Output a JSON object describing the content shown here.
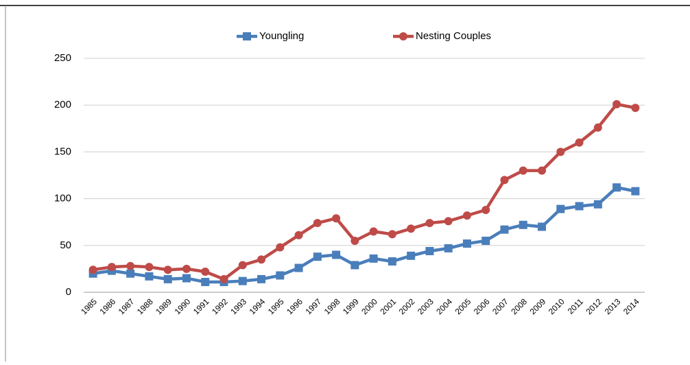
{
  "chart_data": {
    "type": "line",
    "categories": [
      "1985",
      "1986",
      "1987",
      "1988",
      "1989",
      "1990",
      "1991",
      "1992",
      "1993",
      "1994",
      "1995",
      "1996",
      "1997",
      "1998",
      "1999",
      "2000",
      "2001",
      "2002",
      "2003",
      "2004",
      "2005",
      "2006",
      "2007",
      "2008",
      "2009",
      "2010",
      "2011",
      "2012",
      "2013",
      "2014"
    ],
    "series": [
      {
        "name": "Youngling",
        "color": "#4a7ebb",
        "marker": "square",
        "values": [
          20,
          23,
          20,
          17,
          14,
          15,
          11,
          11,
          12,
          14,
          18,
          26,
          38,
          40,
          29,
          36,
          33,
          39,
          44,
          47,
          52,
          55,
          67,
          72,
          70,
          89,
          92,
          94,
          112,
          108
        ]
      },
      {
        "name": "Nesting Couples",
        "color": "#be4b48",
        "marker": "circle",
        "values": [
          24,
          27,
          28,
          27,
          24,
          25,
          22,
          14,
          29,
          35,
          48,
          61,
          74,
          79,
          55,
          65,
          62,
          68,
          74,
          76,
          82,
          88,
          120,
          130,
          130,
          150,
          160,
          176,
          201,
          197
        ]
      }
    ],
    "ylim": [
      0,
      250
    ],
    "yticks": [
      0,
      50,
      100,
      150,
      200,
      250
    ],
    "grid": true,
    "legend": "top"
  }
}
